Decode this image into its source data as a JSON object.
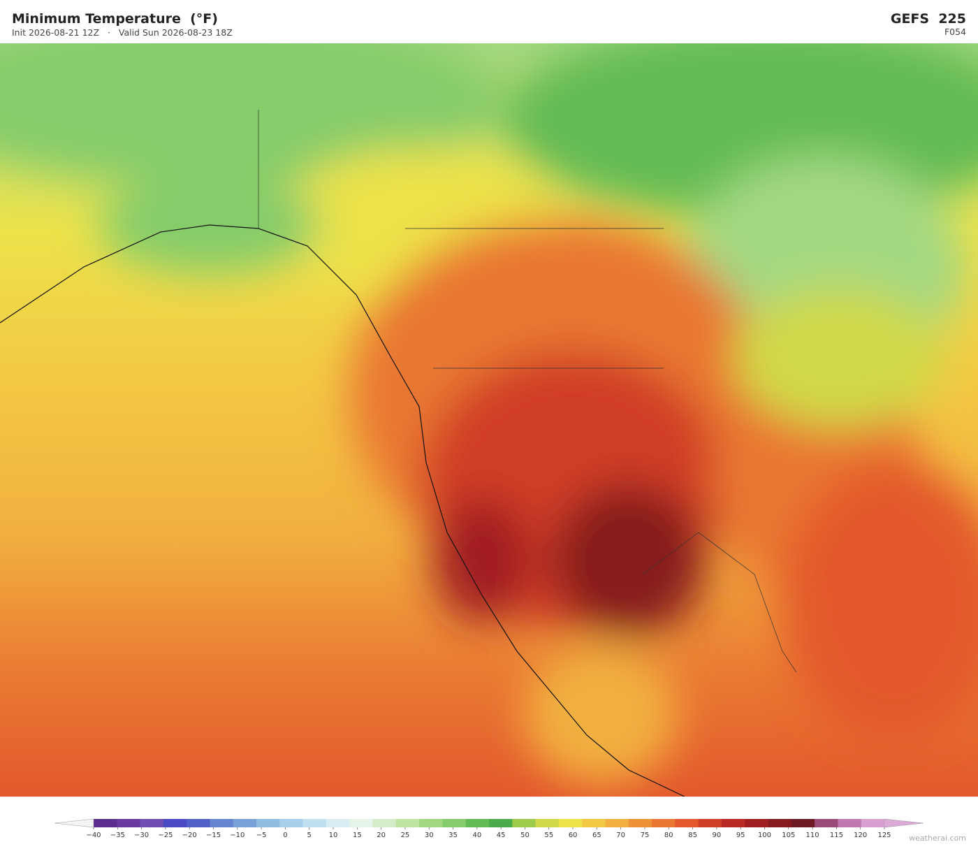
{
  "header": {
    "title": "Minimum Temperature  (°F)",
    "init": "Init 2026-08-21 12Z",
    "valid": "Valid Sun 2026-08-23 18Z",
    "model": "GEFS  225",
    "forecast_hour": "F054"
  },
  "colorbar": {
    "ticks": [
      {
        "value": -40,
        "label": "−40"
      },
      {
        "value": -35,
        "label": "−35"
      },
      {
        "value": -30,
        "label": "−30"
      },
      {
        "value": -25,
        "label": "−25"
      },
      {
        "value": -20,
        "label": "−20"
      },
      {
        "value": -15,
        "label": "−15"
      },
      {
        "value": -10,
        "label": "−10"
      },
      {
        "value": -5,
        "label": "−5"
      },
      0,
      5,
      10,
      15,
      20,
      25,
      30,
      35,
      40,
      45,
      50,
      55,
      60,
      65,
      70,
      75,
      80,
      85,
      90,
      95,
      100,
      105,
      110,
      115,
      120,
      125
    ],
    "colors": [
      "#5b2d8e",
      "#6a3aa0",
      "#6f4db3",
      "#4a4bc4",
      "#5060c8",
      "#6585d0",
      "#7aa0d8",
      "#90bde0",
      "#a8d0ec",
      "#c0e0f0",
      "#d8eef2",
      "#e6f4ea",
      "#d4ecc8",
      "#bde3a0",
      "#a3d882",
      "#85cc6a",
      "#63bb55",
      "#4aab4a",
      "#9dcb4a",
      "#d0d94a",
      "#ede24a",
      "#f3c844",
      "#f2b040",
      "#ee9238",
      "#e97732",
      "#e3582c",
      "#d03e28",
      "#b82a24",
      "#a01e20",
      "#861a1e",
      "#6e1a26",
      "#9c4a7a",
      "#c078b0",
      "#d8a0d0"
    ],
    "extend_colors": [
      "#f4f4f4",
      "#dcaad6"
    ]
  },
  "watermark": "weatherai.com"
}
